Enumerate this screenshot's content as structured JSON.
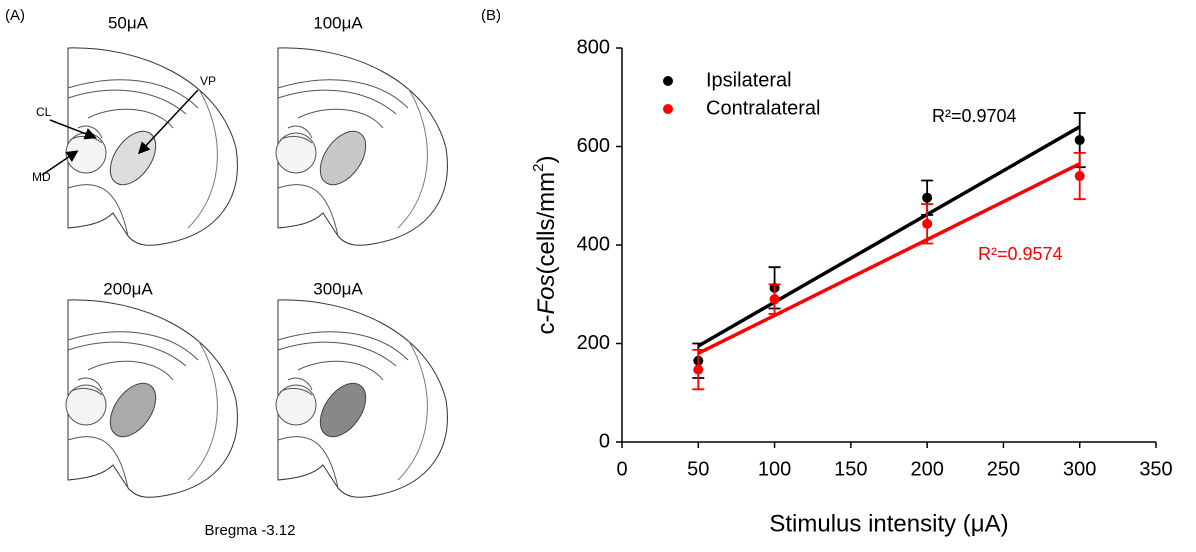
{
  "panel_a": {
    "label": "(A)",
    "sections": [
      "50μA",
      "100μA",
      "200μA",
      "300μA"
    ],
    "regions": [
      "CL",
      "VP",
      "MD"
    ],
    "caption": "Bregma -3.12"
  },
  "chart_data": {
    "type": "scatter",
    "panel_label": "(B)",
    "x_label": "Stimulus intensity (μA)",
    "y_label_parts": [
      "c-",
      "Fos",
      "(cells/mm",
      "2",
      ")"
    ],
    "x": [
      50,
      100,
      200,
      300
    ],
    "series": [
      {
        "name": "Ipsilateral",
        "color": "#000000",
        "values": [
          165,
          313,
          496,
          613
        ],
        "errors": [
          35,
          42,
          35,
          55
        ],
        "fit": {
          "x": [
            50,
            300
          ],
          "values": [
            195,
            640
          ]
        },
        "annotation": "R²=0.9704"
      },
      {
        "name": "Contralateral",
        "color": "#ff0000",
        "values": [
          147,
          290,
          443,
          540
        ],
        "errors": [
          40,
          30,
          40,
          47
        ],
        "fit": {
          "x": [
            50,
            300
          ],
          "values": [
            180,
            565
          ]
        },
        "annotation": "R²=0.9574"
      }
    ],
    "xlim": [
      0,
      350
    ],
    "xticks": [
      0,
      50,
      100,
      150,
      200,
      250,
      300,
      350
    ],
    "ylim": [
      0,
      800
    ],
    "yticks": [
      0,
      200,
      400,
      600,
      800
    ],
    "grid": false,
    "legend": "top-left"
  }
}
